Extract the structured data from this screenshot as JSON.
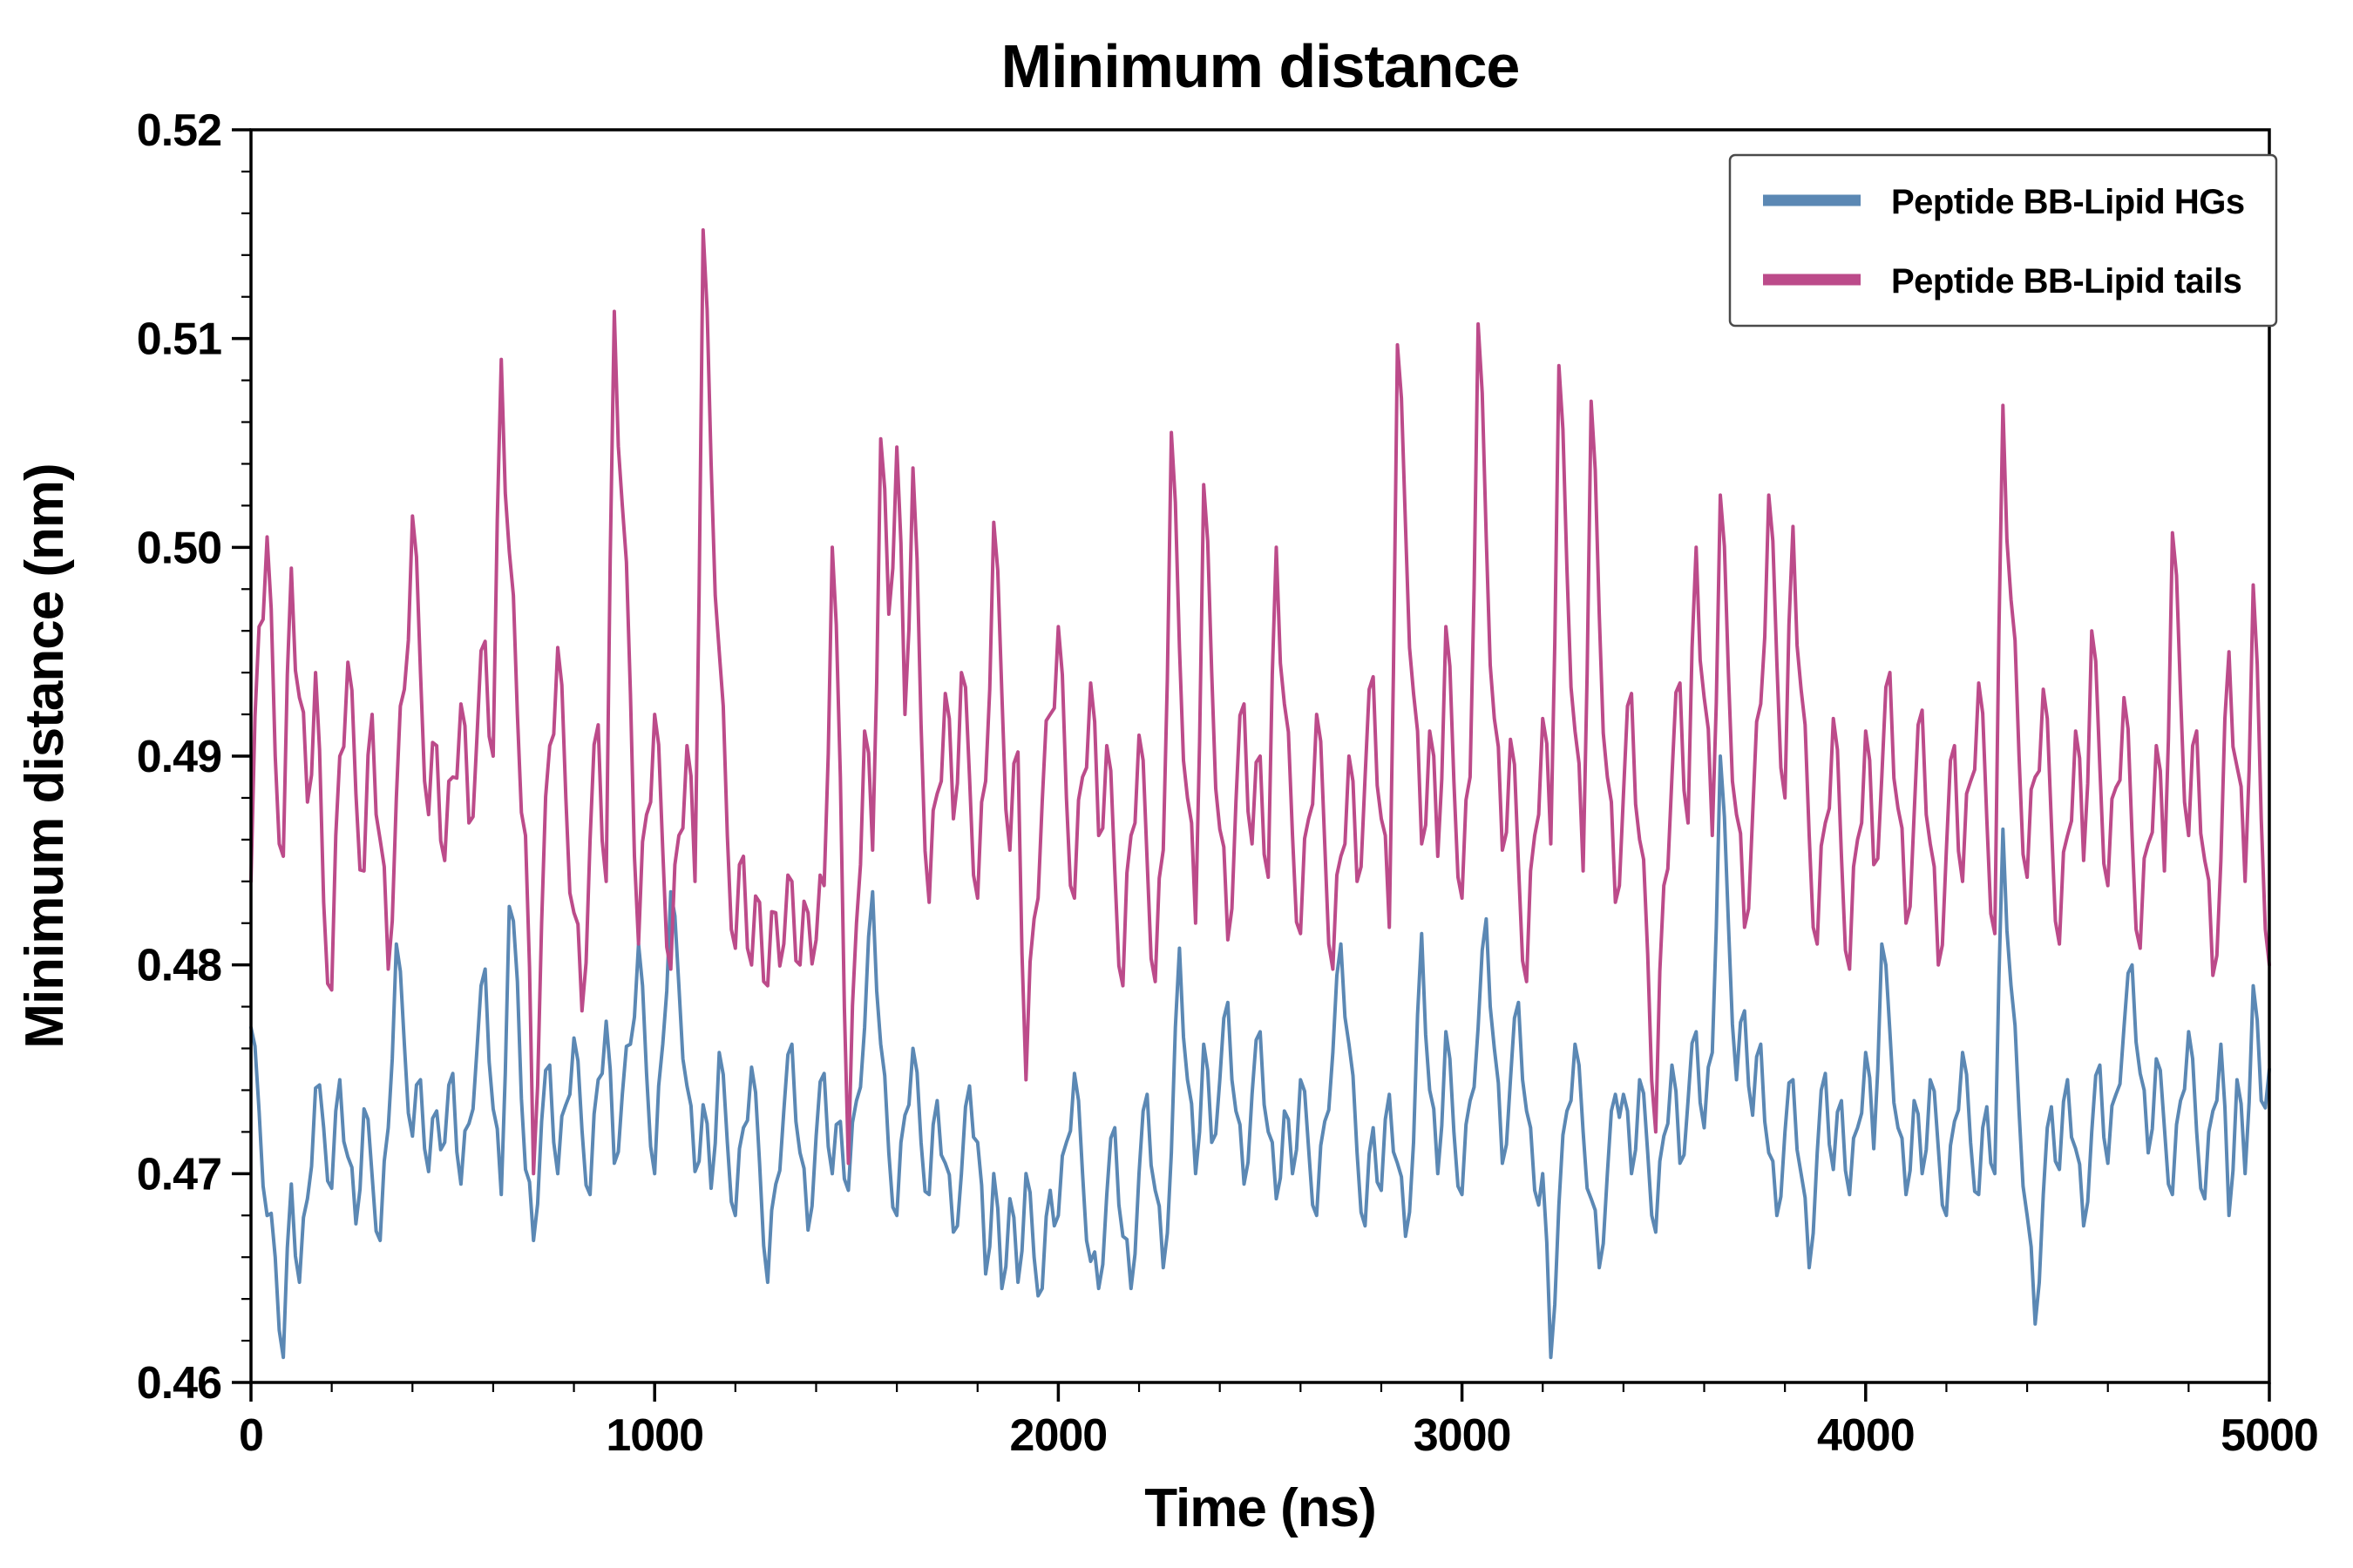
{
  "chart_data": {
    "type": "line",
    "title": "Minimum distance",
    "xlabel": "Time (ns)",
    "ylabel": "Minimum distance (nm)",
    "xlim": [
      0,
      5000
    ],
    "ylim": [
      0.46,
      0.52
    ],
    "x_ticks": [
      0,
      1000,
      2000,
      3000,
      4000,
      5000
    ],
    "x_tick_labels": [
      "0",
      "1000",
      "2000",
      "3000",
      "4000",
      "5000"
    ],
    "y_ticks": [
      0.46,
      0.47,
      0.48,
      0.49,
      0.5,
      0.51,
      0.52
    ],
    "y_tick_labels": [
      "0.46",
      "0.47",
      "0.48",
      "0.49",
      "0.50",
      "0.51",
      "0.52"
    ],
    "x_minor_step": 200,
    "y_minor_step": 0.002,
    "x_step_ns": 20,
    "grid": false,
    "legend_position": "upper right",
    "series": [
      {
        "id": "peptide-bb-lipid-hgs",
        "name": "Peptide BB-Lipid HGs",
        "color": "#5b88b4",
        "midpoint_jitter": 0.0011,
        "values": [
          0.477,
          0.473,
          0.468,
          0.466,
          0.4612,
          0.4695,
          0.4648,
          0.4688,
          0.4741,
          0.4722,
          0.4693,
          0.4745,
          0.4708,
          0.4676,
          0.4731,
          0.4699,
          0.4668,
          0.4722,
          0.481,
          0.4762,
          0.4718,
          0.4745,
          0.4701,
          0.473,
          0.4715,
          0.4748,
          0.4695,
          0.4724,
          0.476,
          0.4798,
          0.4731,
          0.469,
          0.4828,
          0.4792,
          0.4702,
          0.4668,
          0.4725,
          0.4752,
          0.47,
          0.4733,
          0.4765,
          0.4721,
          0.469,
          0.4745,
          0.4773,
          0.4705,
          0.4738,
          0.4762,
          0.481,
          0.4748,
          0.47,
          0.4762,
          0.4835,
          0.479,
          0.4742,
          0.4701,
          0.4733,
          0.4693,
          0.4758,
          0.4715,
          0.468,
          0.4722,
          0.4751,
          0.4705,
          0.4648,
          0.4695,
          0.473,
          0.4762,
          0.471,
          0.4673,
          0.4718,
          0.4748,
          0.47,
          0.4725,
          0.4692,
          0.4735,
          0.477,
          0.4835,
          0.4762,
          0.471,
          0.468,
          0.4728,
          0.476,
          0.4715,
          0.469,
          0.4735,
          0.4705,
          0.4672,
          0.47,
          0.4742,
          0.4715,
          0.4652,
          0.47,
          0.4645,
          0.4688,
          0.4648,
          0.47,
          0.466,
          0.4645,
          0.4692,
          0.468,
          0.4715,
          0.4748,
          0.47,
          0.4658,
          0.4645,
          0.469,
          0.4722,
          0.467,
          0.4645,
          0.47,
          0.4738,
          0.4692,
          0.4655,
          0.471,
          0.4808,
          0.4745,
          0.47,
          0.4762,
          0.4715,
          0.4745,
          0.4782,
          0.473,
          0.4695,
          0.4738,
          0.4768,
          0.472,
          0.4688,
          0.473,
          0.47,
          0.4745,
          0.4712,
          0.468,
          0.4725,
          0.4758,
          0.481,
          0.4762,
          0.471,
          0.4675,
          0.4722,
          0.4692,
          0.4738,
          0.4705,
          0.467,
          0.4715,
          0.4815,
          0.474,
          0.47,
          0.4768,
          0.472,
          0.469,
          0.4735,
          0.477,
          0.4822,
          0.476,
          0.4705,
          0.4745,
          0.4782,
          0.473,
          0.4692,
          0.47,
          0.4612,
          0.4685,
          0.473,
          0.4762,
          0.472,
          0.4688,
          0.4655,
          0.47,
          0.4738,
          0.4738,
          0.47,
          0.4745,
          0.471,
          0.4672,
          0.4718,
          0.4752,
          0.4705,
          0.4735,
          0.4768,
          0.4722,
          0.4758,
          0.49,
          0.482,
          0.4745,
          0.4778,
          0.4728,
          0.4762,
          0.471,
          0.468,
          0.472,
          0.4745,
          0.47,
          0.4655,
          0.471,
          0.4748,
          0.4702,
          0.4735,
          0.469,
          0.4722,
          0.4758,
          0.4712,
          0.481,
          0.4768,
          0.4722,
          0.469,
          0.4735,
          0.47,
          0.4745,
          0.4712,
          0.468,
          0.4725,
          0.4758,
          0.4715,
          0.469,
          0.4732,
          0.47,
          0.4865,
          0.479,
          0.473,
          0.468,
          0.4628,
          0.469,
          0.4732,
          0.4702,
          0.4745,
          0.4712,
          0.4675,
          0.472,
          0.4752,
          0.4705,
          0.4738,
          0.477,
          0.48,
          0.4748,
          0.471,
          0.4755,
          0.4722,
          0.469,
          0.4735,
          0.4768,
          0.472,
          0.4688,
          0.473,
          0.4762,
          0.468,
          0.4745,
          0.47,
          0.479,
          0.4735,
          0.475
        ]
      },
      {
        "id": "peptide-bb-lipid-tails",
        "name": "Peptide BB-Lipid tails",
        "color": "#bc4b8a",
        "midpoint_jitter": 0.0018,
        "values": [
          0.484,
          0.4962,
          0.5005,
          0.49,
          0.4852,
          0.499,
          0.4928,
          0.4878,
          0.494,
          0.483,
          0.4788,
          0.49,
          0.4945,
          0.4882,
          0.4845,
          0.492,
          0.486,
          0.4798,
          0.488,
          0.4932,
          0.5015,
          0.494,
          0.4872,
          0.4905,
          0.485,
          0.489,
          0.4925,
          0.4868,
          0.491,
          0.4955,
          0.49,
          0.509,
          0.4998,
          0.492,
          0.4862,
          0.47,
          0.482,
          0.4905,
          0.4952,
          0.488,
          0.4825,
          0.4778,
          0.486,
          0.4915,
          0.484,
          0.5113,
          0.502,
          0.493,
          0.481,
          0.4872,
          0.492,
          0.4855,
          0.4798,
          0.4862,
          0.4905,
          0.484,
          0.5152,
          0.504,
          0.495,
          0.4862,
          0.4808,
          0.4852,
          0.48,
          0.483,
          0.479,
          0.4825,
          0.481,
          0.484,
          0.48,
          0.4825,
          0.4812,
          0.4838,
          0.5,
          0.489,
          0.4705,
          0.482,
          0.4912,
          0.4855,
          0.5052,
          0.4968,
          0.5048,
          0.492,
          0.5038,
          0.4915,
          0.483,
          0.4882,
          0.493,
          0.487,
          0.494,
          0.489,
          0.4832,
          0.4888,
          0.5012,
          0.493,
          0.4855,
          0.4902,
          0.4745,
          0.4822,
          0.4878,
          0.492,
          0.4962,
          0.488,
          0.4832,
          0.489,
          0.4935,
          0.4862,
          0.4905,
          0.4845,
          0.479,
          0.4862,
          0.491,
          0.485,
          0.4792,
          0.4855,
          0.5055,
          0.4952,
          0.488,
          0.482,
          0.503,
          0.494,
          0.4865,
          0.4812,
          0.4878,
          0.4925,
          0.4858,
          0.49,
          0.4842,
          0.5,
          0.4925,
          0.4862,
          0.4815,
          0.487,
          0.492,
          0.4858,
          0.4798,
          0.4852,
          0.49,
          0.484,
          0.489,
          0.4938,
          0.487,
          0.4818,
          0.5097,
          0.501,
          0.493,
          0.4858,
          0.4912,
          0.4852,
          0.4962,
          0.4888,
          0.4832,
          0.489,
          0.5107,
          0.5005,
          0.4918,
          0.4855,
          0.4908,
          0.4848,
          0.4792,
          0.4862,
          0.4918,
          0.4858,
          0.5087,
          0.499,
          0.4912,
          0.4845,
          0.507,
          0.4968,
          0.489,
          0.483,
          0.4882,
          0.493,
          0.486,
          0.4805,
          0.472,
          0.4838,
          0.489,
          0.4935,
          0.4868,
          0.5,
          0.4928,
          0.4862,
          0.5025,
          0.494,
          0.4872,
          0.4818,
          0.4872,
          0.4925,
          0.5025,
          0.4945,
          0.488,
          0.501,
          0.4932,
          0.4862,
          0.481,
          0.4868,
          0.4918,
          0.4852,
          0.4798,
          0.486,
          0.4912,
          0.4848,
          0.489,
          0.494,
          0.4875,
          0.482,
          0.4872,
          0.4922,
          0.4858,
          0.48,
          0.4855,
          0.4905,
          0.484,
          0.4888,
          0.4935,
          0.487,
          0.4815,
          0.5068,
          0.4975,
          0.49,
          0.4842,
          0.489,
          0.4932,
          0.4868,
          0.481,
          0.4862,
          0.4912,
          0.485,
          0.496,
          0.4895,
          0.4838,
          0.4885,
          0.4928,
          0.4862,
          0.4808,
          0.4858,
          0.4905,
          0.4845,
          0.5007,
          0.493,
          0.4862,
          0.4912,
          0.485,
          0.4795,
          0.485,
          0.495,
          0.4895,
          0.484,
          0.4982,
          0.487,
          0.48
        ]
      }
    ]
  }
}
